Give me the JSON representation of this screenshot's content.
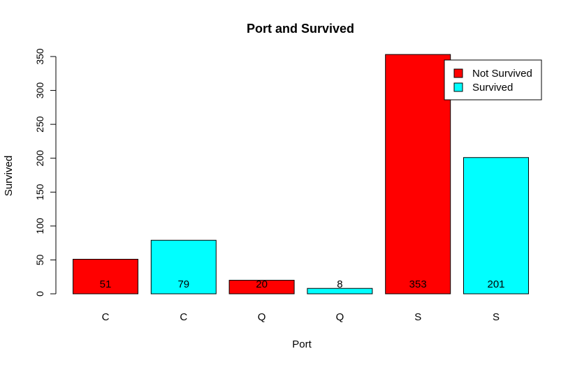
{
  "chart_data": {
    "type": "bar",
    "title": "Port and Survived",
    "xlabel": "Port",
    "ylabel": "Survived",
    "categories": [
      "C",
      "C",
      "Q",
      "Q",
      "S",
      "S"
    ],
    "values": [
      51,
      79,
      20,
      8,
      353,
      201
    ],
    "bar_colors": [
      "#ff0000",
      "#00ffff",
      "#ff0000",
      "#00ffff",
      "#ff0000",
      "#00ffff"
    ],
    "ylim": [
      0,
      350
    ],
    "yticks": [
      0,
      50,
      100,
      150,
      200,
      250,
      300,
      350
    ],
    "grid": false,
    "legend": {
      "position": "top-right",
      "entries": [
        {
          "label": "Not Survived",
          "color": "#ff0000"
        },
        {
          "label": "Survived",
          "color": "#00ffff"
        }
      ]
    }
  }
}
